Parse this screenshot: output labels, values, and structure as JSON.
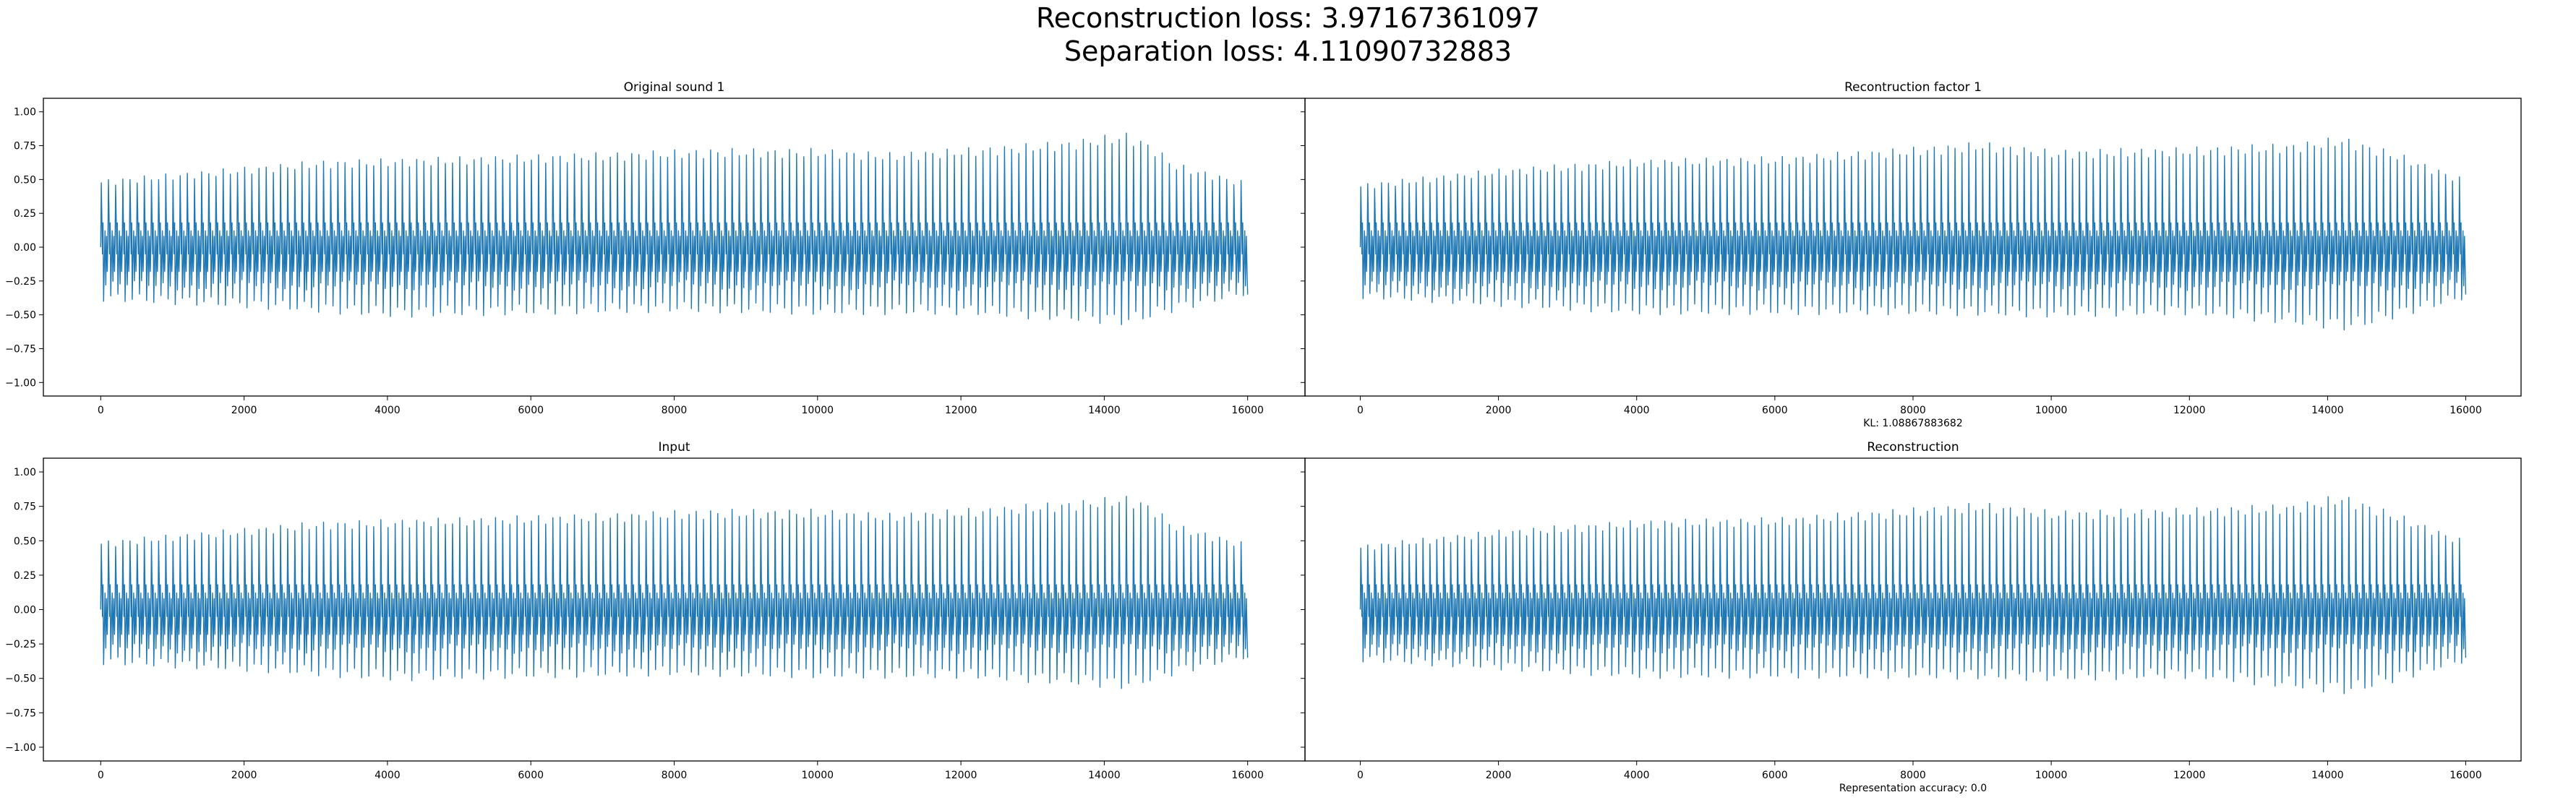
{
  "figure": {
    "title_line1": "Reconstruction loss: 3.97167361097",
    "title_line2": "Separation loss: 4.11090732883"
  },
  "colors": {
    "line": "#1f77b4"
  },
  "chart_data": [
    {
      "type": "line",
      "title": "Original sound 1",
      "xlabel": "",
      "ylabel": "",
      "xlim": [
        -800,
        16800
      ],
      "ylim": [
        -1.1,
        1.1
      ],
      "xticks": [
        0,
        2000,
        4000,
        6000,
        8000,
        10000,
        12000,
        14000,
        16000
      ],
      "yticks": [
        -1.0,
        -0.75,
        -0.5,
        -0.25,
        0.0,
        0.25,
        0.5,
        0.75,
        1.0
      ],
      "ytick_labels": [
        "−1.00",
        "−0.75",
        "−0.50",
        "−0.25",
        "0.00",
        "0.25",
        "0.50",
        "0.75",
        "1.00"
      ],
      "xtick_labels": [
        "0",
        "2000",
        "4000",
        "6000",
        "8000",
        "10000",
        "12000",
        "14000",
        "16000"
      ],
      "series": [
        {
          "x_range": [
            0,
            16000
          ],
          "cycles": 160,
          "envelope_upper": [
            [
              0,
              0.5
            ],
            [
              1500,
              0.57
            ],
            [
              3000,
              0.64
            ],
            [
              5000,
              0.67
            ],
            [
              7000,
              0.7
            ],
            [
              8500,
              0.73
            ],
            [
              10000,
              0.73
            ],
            [
              11000,
              0.7
            ],
            [
              12500,
              0.75
            ],
            [
              13500,
              0.79
            ],
            [
              14300,
              0.85
            ],
            [
              14600,
              0.78
            ],
            [
              15000,
              0.62
            ],
            [
              16000,
              0.48
            ]
          ],
          "envelope_lower": [
            [
              0,
              -0.4
            ],
            [
              2000,
              -0.45
            ],
            [
              4000,
              -0.52
            ],
            [
              6000,
              -0.5
            ],
            [
              8000,
              -0.48
            ],
            [
              10000,
              -0.5
            ],
            [
              12000,
              -0.5
            ],
            [
              13500,
              -0.55
            ],
            [
              14300,
              -0.58
            ],
            [
              15000,
              -0.47
            ],
            [
              16000,
              -0.35
            ]
          ]
        }
      ]
    },
    {
      "type": "line",
      "title": "Recontruction factor 1",
      "xlabel": "KL: 1.08867883682",
      "ylabel": "",
      "xlim": [
        -800,
        16800
      ],
      "ylim": [
        -1.1,
        1.1
      ],
      "xticks": [
        0,
        2000,
        4000,
        6000,
        8000,
        10000,
        12000,
        14000,
        16000
      ],
      "yticks": [
        -1.0,
        -0.75,
        -0.5,
        -0.25,
        0.0,
        0.25,
        0.5,
        0.75,
        1.0
      ],
      "ytick_labels": [],
      "xtick_labels": [
        "0",
        "2000",
        "4000",
        "6000",
        "8000",
        "10000",
        "12000",
        "14000",
        "16000"
      ],
      "series": [
        {
          "x_range": [
            0,
            16000
          ],
          "cycles": 160,
          "envelope_upper": [
            [
              0,
              0.47
            ],
            [
              2000,
              0.58
            ],
            [
              4000,
              0.65
            ],
            [
              6000,
              0.67
            ],
            [
              8000,
              0.74
            ],
            [
              9000,
              0.78
            ],
            [
              10000,
              0.72
            ],
            [
              12000,
              0.74
            ],
            [
              13500,
              0.77
            ],
            [
              14200,
              0.82
            ],
            [
              15000,
              0.7
            ],
            [
              16000,
              0.5
            ]
          ],
          "envelope_lower": [
            [
              0,
              -0.38
            ],
            [
              2000,
              -0.44
            ],
            [
              4000,
              -0.5
            ],
            [
              6000,
              -0.5
            ],
            [
              8000,
              -0.5
            ],
            [
              10000,
              -0.52
            ],
            [
              12000,
              -0.5
            ],
            [
              14300,
              -0.62
            ],
            [
              15000,
              -0.52
            ],
            [
              16000,
              -0.38
            ]
          ]
        }
      ]
    },
    {
      "type": "line",
      "title": "Input",
      "xlabel": "",
      "ylabel": "",
      "xlim": [
        -800,
        16800
      ],
      "ylim": [
        -1.1,
        1.1
      ],
      "xticks": [
        0,
        2000,
        4000,
        6000,
        8000,
        10000,
        12000,
        14000,
        16000
      ],
      "yticks": [
        -1.0,
        -0.75,
        -0.5,
        -0.25,
        0.0,
        0.25,
        0.5,
        0.75,
        1.0
      ],
      "ytick_labels": [
        "−1.00",
        "−0.75",
        "−0.50",
        "−0.25",
        "0.00",
        "0.25",
        "0.50",
        "0.75",
        "1.00"
      ],
      "xtick_labels": [
        "0",
        "2000",
        "4000",
        "6000",
        "8000",
        "10000",
        "12000",
        "14000",
        "16000"
      ],
      "series": [
        {
          "x_range": [
            0,
            16000
          ],
          "cycles": 160,
          "envelope_upper": [
            [
              0,
              0.5
            ],
            [
              1500,
              0.57
            ],
            [
              3000,
              0.64
            ],
            [
              5000,
              0.67
            ],
            [
              7000,
              0.7
            ],
            [
              8500,
              0.73
            ],
            [
              10000,
              0.73
            ],
            [
              11000,
              0.7
            ],
            [
              12500,
              0.75
            ],
            [
              13500,
              0.79
            ],
            [
              14300,
              0.83
            ],
            [
              14600,
              0.78
            ],
            [
              15000,
              0.62
            ],
            [
              16000,
              0.48
            ]
          ],
          "envelope_lower": [
            [
              0,
              -0.4
            ],
            [
              2000,
              -0.45
            ],
            [
              4000,
              -0.52
            ],
            [
              6000,
              -0.5
            ],
            [
              8000,
              -0.48
            ],
            [
              10000,
              -0.5
            ],
            [
              12000,
              -0.5
            ],
            [
              13500,
              -0.55
            ],
            [
              14300,
              -0.58
            ],
            [
              15000,
              -0.47
            ],
            [
              16000,
              -0.35
            ]
          ]
        }
      ]
    },
    {
      "type": "line",
      "title": "Reconstruction",
      "xlabel": "Representation accuracy: 0.0",
      "ylabel": "",
      "xlim": [
        -800,
        16800
      ],
      "ylim": [
        -1.1,
        1.1
      ],
      "xticks": [
        0,
        2000,
        4000,
        6000,
        8000,
        10000,
        12000,
        14000,
        16000
      ],
      "yticks": [
        -1.0,
        -0.75,
        -0.5,
        -0.25,
        0.0,
        0.25,
        0.5,
        0.75,
        1.0
      ],
      "ytick_labels": [],
      "xtick_labels": [
        "0",
        "2000",
        "4000",
        "6000",
        "8000",
        "10000",
        "12000",
        "14000",
        "16000"
      ],
      "series": [
        {
          "x_range": [
            0,
            16000
          ],
          "cycles": 160,
          "envelope_upper": [
            [
              0,
              0.47
            ],
            [
              2000,
              0.58
            ],
            [
              4000,
              0.65
            ],
            [
              6000,
              0.67
            ],
            [
              8000,
              0.74
            ],
            [
              9000,
              0.78
            ],
            [
              10000,
              0.72
            ],
            [
              12000,
              0.74
            ],
            [
              13500,
              0.77
            ],
            [
              14200,
              0.84
            ],
            [
              15000,
              0.7
            ],
            [
              16000,
              0.5
            ]
          ],
          "envelope_lower": [
            [
              0,
              -0.38
            ],
            [
              2000,
              -0.44
            ],
            [
              4000,
              -0.5
            ],
            [
              6000,
              -0.5
            ],
            [
              8000,
              -0.5
            ],
            [
              10000,
              -0.52
            ],
            [
              12000,
              -0.5
            ],
            [
              14300,
              -0.62
            ],
            [
              15000,
              -0.52
            ],
            [
              16000,
              -0.38
            ]
          ]
        }
      ]
    }
  ]
}
